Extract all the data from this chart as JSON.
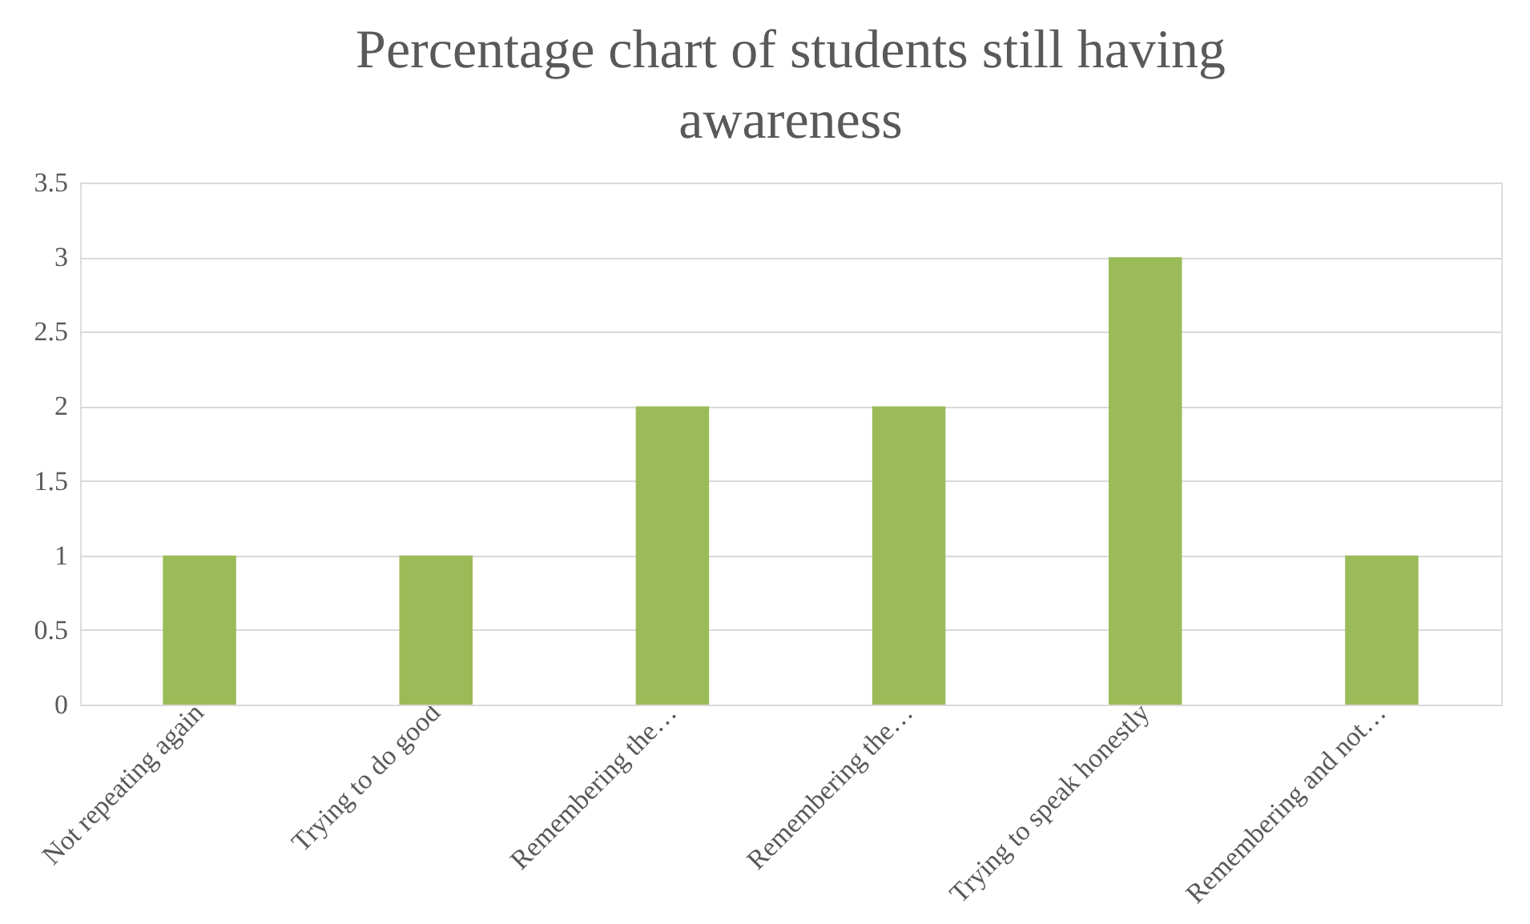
{
  "chart_data": {
    "type": "bar",
    "title": "Percentage chart of students still having awareness",
    "categories": [
      "Not repeating again",
      "Trying to do good",
      "Remembering the…",
      "Remembering the…",
      "Trying to speak honestly",
      "Remembering and not…"
    ],
    "values": [
      1,
      1,
      2,
      2,
      3,
      1
    ],
    "color": "#9bbb59",
    "ylim": [
      0,
      3.5
    ],
    "yticks": [
      0,
      0.5,
      1,
      1.5,
      2,
      2.5,
      3,
      3.5
    ],
    "grid": "y"
  }
}
